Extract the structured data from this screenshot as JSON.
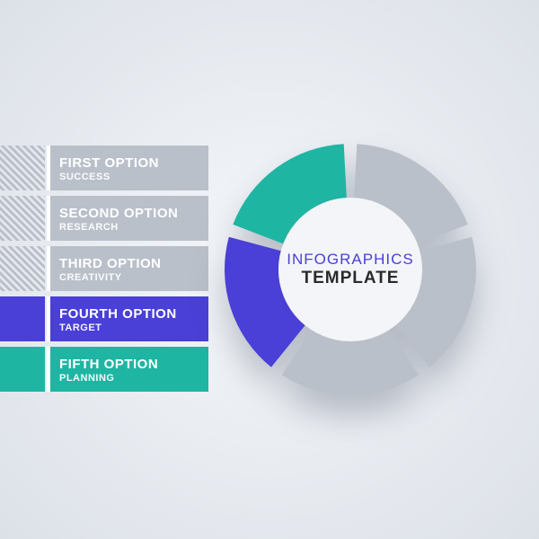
{
  "background": {
    "gradient_inner": "#f5f7fa",
    "gradient_outer": "#dce1e8"
  },
  "options": [
    {
      "title": "FIRST OPTION",
      "subtitle": "SUCCESS",
      "bar_color": "#bac0c9",
      "highlight": "stripe"
    },
    {
      "title": "SECOND OPTION",
      "subtitle": "RESEARCH",
      "bar_color": "#bac0c9",
      "highlight": "stripe"
    },
    {
      "title": "THIRD OPTION",
      "subtitle": "CREATIVITY",
      "bar_color": "#bac0c9",
      "highlight": "stripe"
    },
    {
      "title": "FOURTH OPTION",
      "subtitle": "TARGET",
      "bar_color": "#4a3fd6",
      "highlight": "purple"
    },
    {
      "title": "FIFTH OPTION",
      "subtitle": "PLANNING",
      "bar_color": "#1fb5a3",
      "highlight": "teal"
    }
  ],
  "donut": {
    "type": "donut",
    "segments": 5,
    "outer_radius": 140,
    "inner_radius": 80,
    "gap_deg": 6,
    "start_angle_deg": -90,
    "colors": [
      "#bac0c9",
      "#bac0c9",
      "#bac0c9",
      "#4a3fd6",
      "#1fb5a3"
    ],
    "center_bg": "#f3f5f8",
    "center_line1": "INFOGRAPHICS",
    "center_line2": "TEMPLATE",
    "center_line1_color": "#4a3fd6",
    "center_line2_color": "#2a2a2a",
    "center_line1_fontsize": 17,
    "center_line2_fontsize": 19
  }
}
